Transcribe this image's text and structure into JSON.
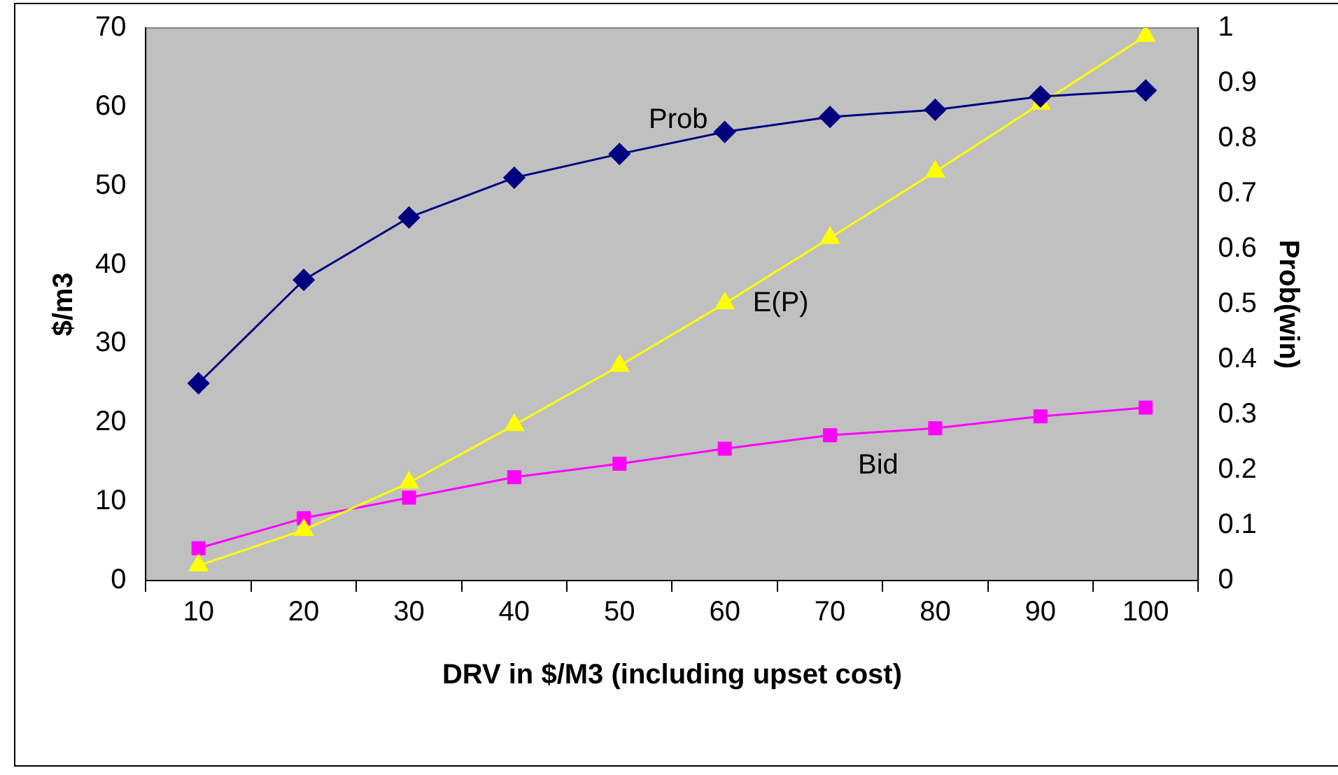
{
  "chart_data": {
    "type": "line",
    "xlabel": "DRV in $/M3 (including upset cost)",
    "ylabel": "$/m3",
    "y2label": "Prob(win)",
    "categories": [
      "10",
      "20",
      "30",
      "40",
      "50",
      "60",
      "70",
      "80",
      "90",
      "100"
    ],
    "series": [
      {
        "name": "Prob",
        "color": "#000080",
        "marker": "diamond",
        "axis": "y2",
        "values": [
          0.357,
          0.544,
          0.657,
          0.729,
          0.772,
          0.812,
          0.839,
          0.852,
          0.876,
          0.887
        ]
      },
      {
        "name": "E(P)",
        "color": "#ffff00",
        "marker": "triangle",
        "values": [
          1.9,
          6.4,
          12.4,
          19.7,
          27.2,
          35.1,
          43.4,
          51.8,
          60.4,
          69.0
        ]
      },
      {
        "name": "Bid",
        "color": "#ff00ff",
        "marker": "square",
        "values": [
          4.1,
          7.9,
          10.5,
          13.1,
          14.8,
          16.7,
          18.4,
          19.3,
          20.8,
          21.9
        ]
      }
    ],
    "ylim": [
      0,
      70
    ],
    "yticks": [
      0,
      10,
      20,
      30,
      40,
      50,
      60,
      70
    ],
    "y2lim": [
      0,
      1
    ],
    "y2ticks": [
      0,
      0.1,
      0.2,
      0.3,
      0.4,
      0.5,
      0.6,
      0.7,
      0.8,
      0.9,
      1
    ],
    "grid": false,
    "legend": false
  }
}
